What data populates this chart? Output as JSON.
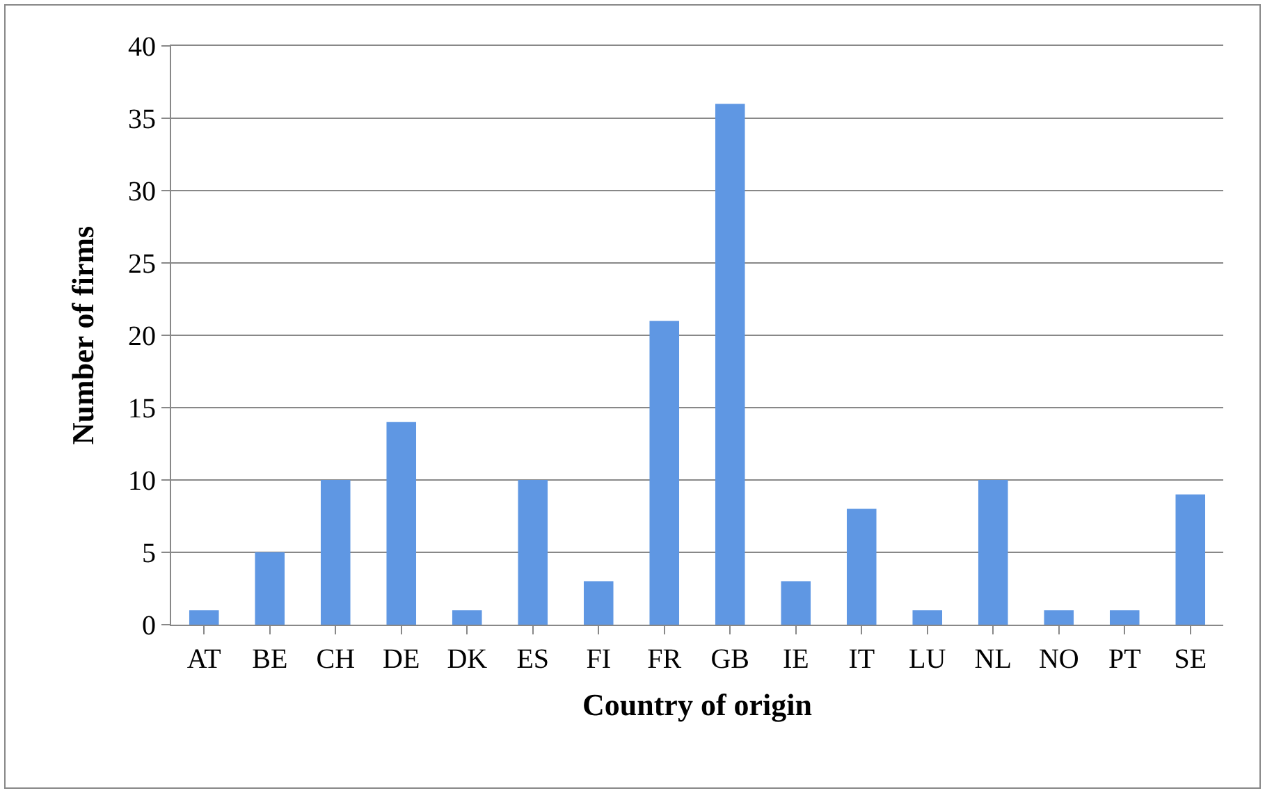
{
  "chart_data": {
    "type": "bar",
    "xlabel": "Country of origin",
    "ylabel": "Number of firms",
    "categories": [
      "AT",
      "BE",
      "CH",
      "DE",
      "DK",
      "ES",
      "FI",
      "FR",
      "GB",
      "IE",
      "IT",
      "LU",
      "NL",
      "NO",
      "PT",
      "SE"
    ],
    "values": [
      1,
      5,
      10,
      14,
      1,
      10,
      3,
      21,
      36,
      3,
      8,
      1,
      10,
      1,
      1,
      9
    ],
    "color": "#5f97e3",
    "ylim": [
      0,
      40
    ],
    "yticks": [
      0,
      5,
      10,
      15,
      20,
      25,
      30,
      35,
      40
    ],
    "grid": "y"
  }
}
